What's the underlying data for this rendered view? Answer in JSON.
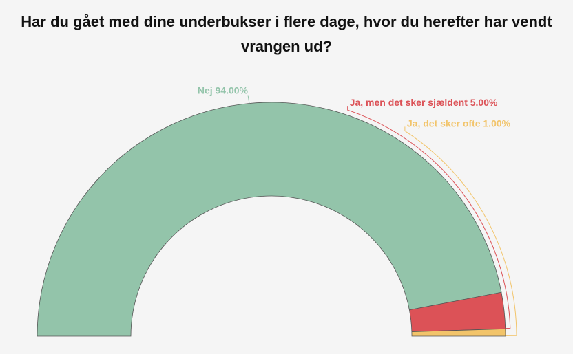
{
  "chart_data": {
    "type": "pie",
    "title": "Har du gået med dine underbukser i flere dage, hvor du herefter har vendt vrangen ud?",
    "categories": [
      "Nej",
      "Ja, men det sker sjældent",
      "Ja, det sker ofte"
    ],
    "values": [
      94,
      5,
      1
    ],
    "value_labels": [
      "94.00%",
      "5.00%",
      "1.00%"
    ],
    "colors": [
      "#93c4aa",
      "#dc5257",
      "#f2c46a"
    ]
  }
}
